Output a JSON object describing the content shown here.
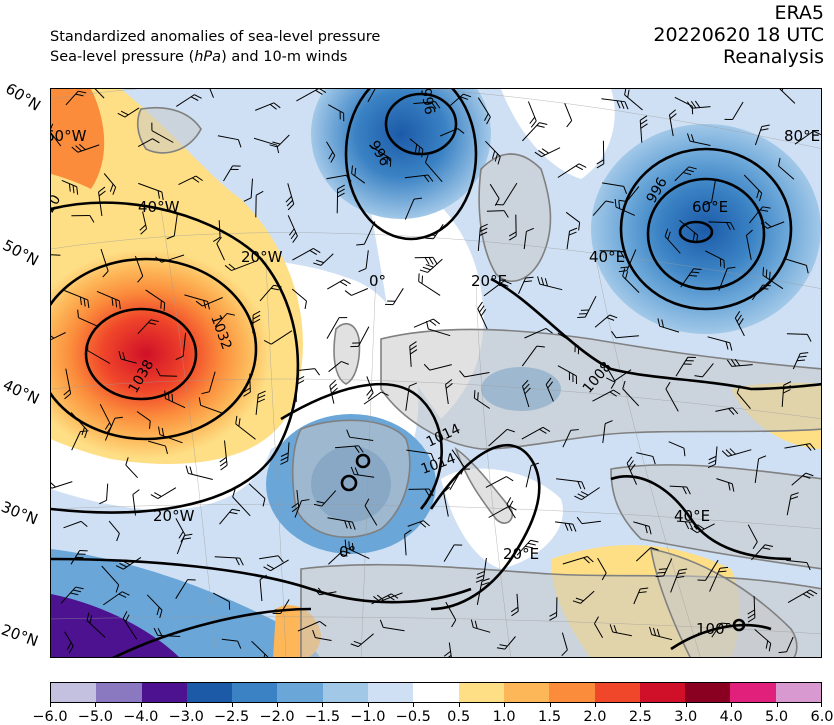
{
  "header": {
    "subtitle_line1": "Standardized anomalies of sea-level pressure",
    "subtitle_line2_pre": "Sea-level pressure (",
    "subtitle_line2_unit": "hPa",
    "subtitle_line2_post": ") and 10-m winds",
    "dataset": "ERA5",
    "datetime": "20220620 18 UTC",
    "product": "Reanalysis"
  },
  "map": {
    "latitude_labels": [
      "60°N",
      "50°N",
      "40°N",
      "30°N",
      "20°N"
    ],
    "longitude_labels": [
      "60°W",
      "40°W",
      "20°W",
      "0°",
      "20°E",
      "40°E",
      "60°E",
      "80°E",
      "20°W",
      "0°",
      "20°E",
      "40°E",
      "100°"
    ],
    "isobar_labels": [
      "1020",
      "1032",
      "1038",
      "996",
      "996",
      "996",
      "1008",
      "1014",
      "1014"
    ],
    "colors": {
      "land": "#c8c8c8",
      "coast": "#808080",
      "isobar": "#000000"
    }
  },
  "colorbar": {
    "levels": [
      "−6.0",
      "−5.0",
      "−4.0",
      "−3.0",
      "−2.5",
      "−2.0",
      "−1.5",
      "−1.0",
      "−0.5",
      "0.5",
      "1.0",
      "1.5",
      "2.0",
      "2.5",
      "3.0",
      "4.0",
      "5.0",
      "6.0"
    ],
    "colors": [
      "#c4c0e0",
      "#8a78c0",
      "#4d1290",
      "#1c5aa8",
      "#3a82c4",
      "#6aa6d8",
      "#a2c8e8",
      "#cfe0f4",
      "#ffffff",
      "#fedf86",
      "#fdb658",
      "#fb8c3c",
      "#f0462a",
      "#d01028",
      "#8a0020",
      "#e0207a",
      "#d898d0"
    ]
  }
}
